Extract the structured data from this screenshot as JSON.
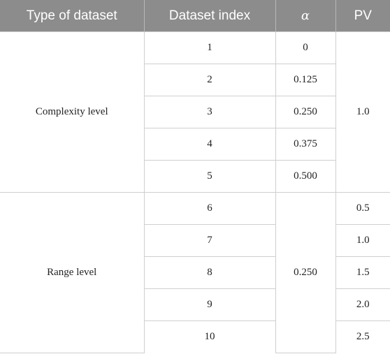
{
  "table": {
    "headers": [
      "Type of dataset",
      "Dataset index",
      "α",
      "PV"
    ],
    "groups": [
      {
        "type": "Complexity level",
        "pv_shared": "1.0",
        "rows": [
          {
            "index": "1",
            "alpha": "0"
          },
          {
            "index": "2",
            "alpha": "0.125"
          },
          {
            "index": "3",
            "alpha": "0.250"
          },
          {
            "index": "4",
            "alpha": "0.375"
          },
          {
            "index": "5",
            "alpha": "0.500"
          }
        ]
      },
      {
        "type": "Range level",
        "alpha_shared": "0.250",
        "rows": [
          {
            "index": "6",
            "pv": "0.5"
          },
          {
            "index": "7",
            "pv": "1.0"
          },
          {
            "index": "8",
            "pv": "1.5"
          },
          {
            "index": "9",
            "pv": "2.0"
          },
          {
            "index": "10",
            "pv": "2.5"
          }
        ]
      }
    ]
  }
}
